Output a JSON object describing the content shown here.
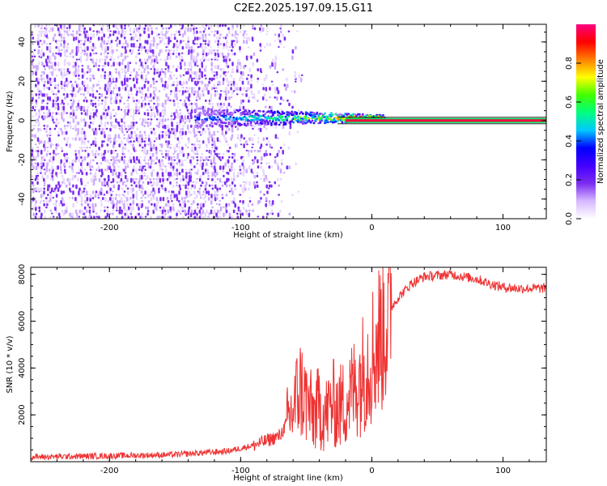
{
  "title": "C2E2.2025.197.09.15.G11",
  "chart_data": [
    {
      "type": "heatmap",
      "title": "C2E2.2025.197.09.15.G11",
      "xlabel": "Height of straight line (km)",
      "ylabel": "Frequency (Hz)",
      "xlim": [
        -260,
        133
      ],
      "ylim": [
        -50,
        49
      ],
      "xticks": [
        -200,
        -100,
        0,
        100
      ],
      "yticks": [
        -40,
        -20,
        0,
        20,
        40
      ],
      "colorbar": {
        "label": "Normalized spectral amplitude",
        "range": [
          0,
          1
        ],
        "ticks": [
          0.0,
          0.2,
          0.4,
          0.6,
          0.8
        ],
        "colormap": [
          "#ffffff",
          "#d6b8ff",
          "#7b2cf0",
          "#4400ff",
          "#0000ff",
          "#00c8ff",
          "#00ff80",
          "#40ff00",
          "#ffff00",
          "#ff8000",
          "#ff0000",
          "#ff0080"
        ]
      },
      "features": {
        "noise_region_x": [
          -260,
          -80
        ],
        "noise_amplitude": 0.1,
        "signal_ridge_x": [
          -135,
          10
        ],
        "signal_ridge_freq": 1,
        "signal_amplitude_peak": 0.9,
        "carrier_line_x": [
          -20,
          133
        ],
        "carrier_line_freq": 0
      }
    },
    {
      "type": "line",
      "xlabel": "Height of straight line (km)",
      "ylabel": "SNR (10 * v/v)",
      "xlim": [
        -260,
        133
      ],
      "ylim": [
        0,
        8300
      ],
      "xticks": [
        -200,
        -100,
        0,
        100
      ],
      "yticks": [
        2000,
        4000,
        6000,
        8000
      ],
      "series": [
        {
          "color": "#ee3333",
          "x": [
            -260,
            -200,
            -150,
            -110,
            -90,
            -70,
            -60,
            -55,
            -50,
            -45,
            -40,
            -35,
            -30,
            -25,
            -20,
            -15,
            -10,
            -5,
            0,
            5,
            10,
            15,
            20,
            30,
            40,
            50,
            60,
            70,
            80,
            90,
            100,
            110,
            120,
            133
          ],
          "y": [
            200,
            250,
            300,
            450,
            700,
            1100,
            2200,
            3200,
            2600,
            2000,
            2300,
            2000,
            2500,
            2300,
            2600,
            3000,
            3500,
            4000,
            4600,
            5200,
            6000,
            6600,
            7000,
            7600,
            7900,
            7950,
            8000,
            7900,
            7800,
            7600,
            7450,
            7400,
            7400,
            7400
          ]
        }
      ]
    }
  ]
}
